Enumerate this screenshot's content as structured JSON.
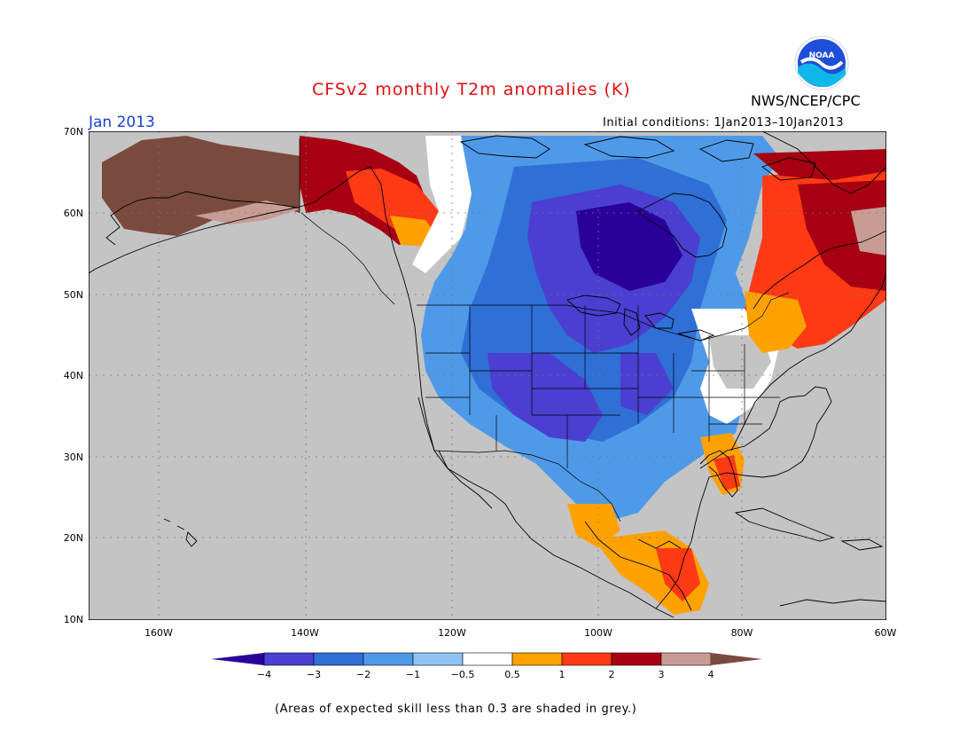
{
  "title": "CFSv2 monthly T2m anomalies (K)",
  "agency": "NWS/NCEP/CPC",
  "logo_text": "NOAA",
  "month": "Jan 2013",
  "initial_conditions": "Initial conditions: 1Jan2013–10Jan2013",
  "footnote": "(Areas of expected skill less than 0.3 are shaded in grey.)",
  "lat_labels": [
    "70N",
    "60N",
    "50N",
    "40N",
    "30N",
    "20N",
    "10N"
  ],
  "lon_labels": [
    "160W",
    "140W",
    "120W",
    "100W",
    "80W",
    "60W"
  ],
  "colorbar": {
    "labels": [
      "−4",
      "−3",
      "−2",
      "−1",
      "−0.5",
      "0.5",
      "1",
      "2",
      "3",
      "4"
    ],
    "colors": [
      "#2a009b",
      "#4a3fd0",
      "#2f6fd6",
      "#4f9ae8",
      "#8fc3f2",
      "#ffffff",
      "#ffa200",
      "#ff3a14",
      "#a60012",
      "#c89c94",
      "#7a4a3e"
    ]
  },
  "colors": {
    "ocean": "#c4c4c4",
    "frame": "#000000",
    "title": "#e01010",
    "month": "#1a3fd8",
    "logo_blue": "#1f4fd8"
  }
}
